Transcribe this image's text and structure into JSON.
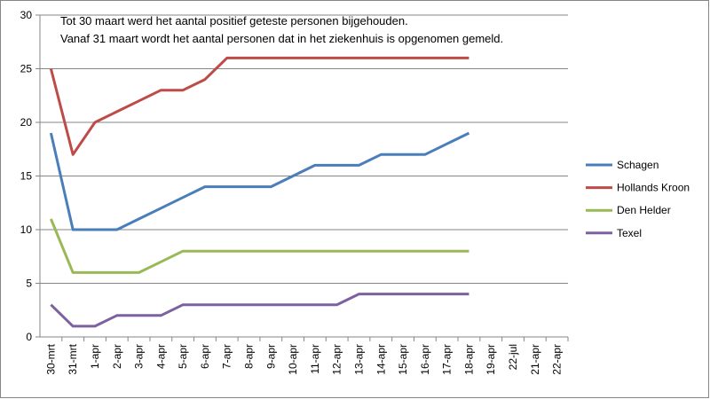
{
  "chart_data": {
    "type": "line",
    "annotations": [
      "Tot 30 maart werd het aantal positief geteste personen bijgehouden.",
      "Vanaf 31 maart wordt het aantal personen dat in het ziekenhuis is opgenomen gemeld."
    ],
    "categories": [
      "30-mrt",
      "31-mrt",
      "1-apr",
      "2-apr",
      "3-apr",
      "4-apr",
      "5-apr",
      "6-apr",
      "7-apr",
      "8-apr",
      "9-apr",
      "10-apr",
      "11-apr",
      "12-apr",
      "13-apr",
      "14-apr",
      "15-apr",
      "16-apr",
      "17-apr",
      "18-apr",
      "19-apr",
      "22-jul",
      "21-apr",
      "22-apr"
    ],
    "series": [
      {
        "name": "Schagen",
        "color": "#4a7ebb",
        "values": [
          19,
          10,
          10,
          10,
          11,
          12,
          13,
          14,
          14,
          14,
          14,
          15,
          16,
          16,
          16,
          17,
          17,
          17,
          18,
          19,
          null,
          null,
          null,
          null
        ]
      },
      {
        "name": "Hollands Kroon",
        "color": "#be4b48",
        "values": [
          25,
          17,
          20,
          21,
          22,
          23,
          23,
          24,
          26,
          26,
          26,
          26,
          26,
          26,
          26,
          26,
          26,
          26,
          26,
          26,
          null,
          null,
          null,
          null
        ]
      },
      {
        "name": "Den Helder",
        "color": "#98b954",
        "values": [
          11,
          6,
          6,
          6,
          6,
          7,
          8,
          8,
          8,
          8,
          8,
          8,
          8,
          8,
          8,
          8,
          8,
          8,
          8,
          8,
          null,
          null,
          null,
          null
        ]
      },
      {
        "name": "Texel",
        "color": "#7d60a0",
        "values": [
          3,
          1,
          1,
          2,
          2,
          2,
          3,
          3,
          3,
          3,
          3,
          3,
          3,
          3,
          4,
          4,
          4,
          4,
          4,
          4,
          null,
          null,
          null,
          null
        ]
      }
    ],
    "ylim": [
      0,
      30
    ],
    "yticks": [
      0,
      5,
      10,
      15,
      20,
      25,
      30
    ],
    "grid": true,
    "legend": "right"
  }
}
